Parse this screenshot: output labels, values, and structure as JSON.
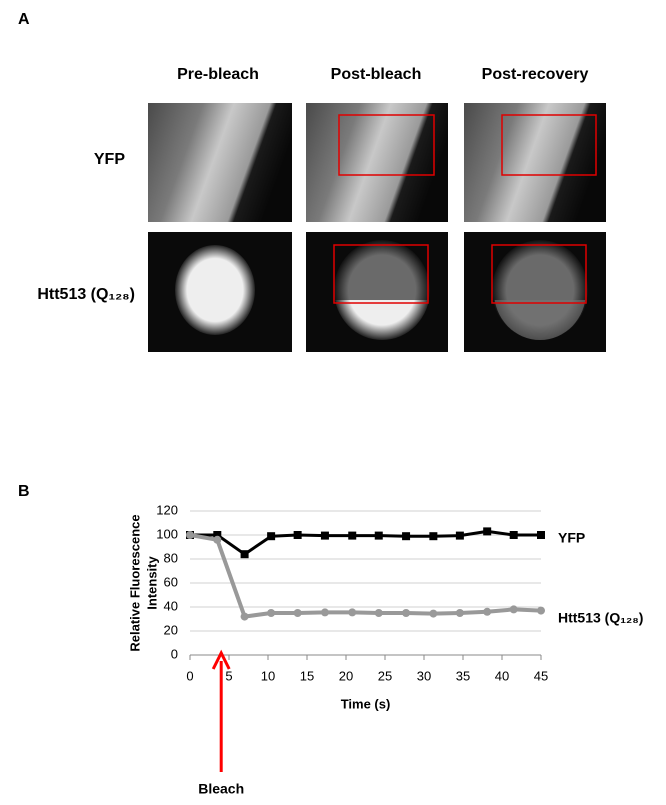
{
  "figure": {
    "panel_a": "A",
    "panel_b": "B",
    "columns": [
      "Pre-bleach",
      "Post-bleach",
      "Post-recovery"
    ],
    "rows": [
      "YFP",
      "Htt513 (Q₁₂₈)"
    ]
  },
  "chart_data": {
    "type": "line",
    "xlabel": "Time (s)",
    "ylabel": [
      "Relative Fluorescence",
      "Intensity"
    ],
    "x": [
      0,
      3.5,
      7,
      10.4,
      13.8,
      17.3,
      20.8,
      24.2,
      27.7,
      31.2,
      34.6,
      38.1,
      41.5,
      45
    ],
    "series": [
      {
        "name": "YFP",
        "color": "#000000",
        "marker": "square",
        "values": [
          100,
          100,
          84,
          99,
          100,
          99.5,
          99.5,
          99.5,
          99,
          99,
          99.5,
          103,
          100,
          100
        ]
      },
      {
        "name": "Htt513 (Q₁₂₈)",
        "color": "#999999",
        "marker": "circle",
        "values": [
          100,
          96,
          32,
          35,
          35,
          35.5,
          35.5,
          35,
          35,
          34.5,
          35,
          36,
          38,
          37
        ]
      }
    ],
    "xlim": [
      0,
      45
    ],
    "xticks": [
      0,
      5,
      10,
      15,
      20,
      25,
      30,
      35,
      40,
      45
    ],
    "ylim": [
      0,
      120
    ],
    "yticks": [
      0,
      20,
      40,
      60,
      80,
      100,
      120
    ],
    "grid": true,
    "annotation": {
      "text": "Bleach",
      "x": 4,
      "color": "#ff0000"
    }
  }
}
